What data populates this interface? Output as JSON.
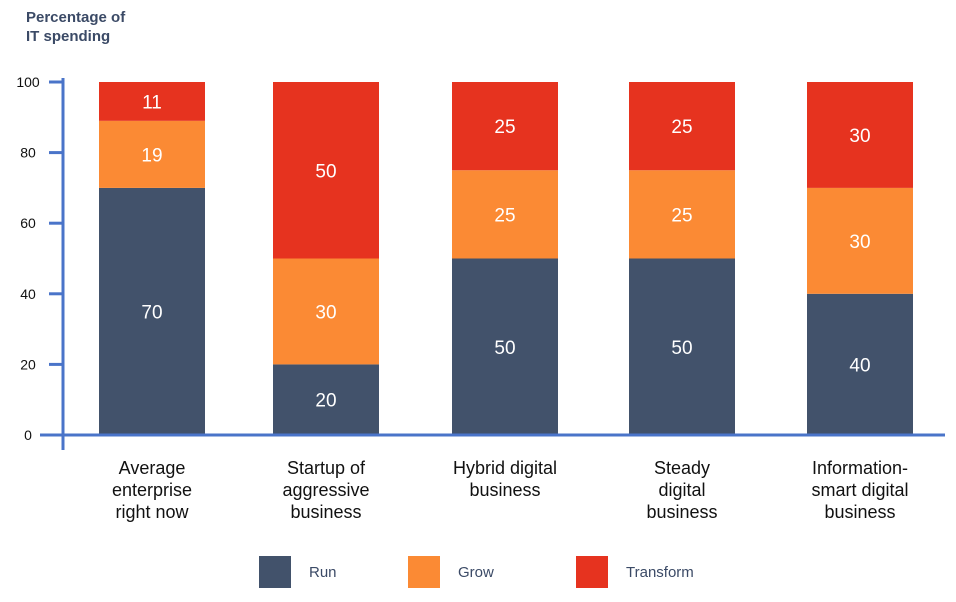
{
  "chart_data": {
    "type": "bar",
    "stacked": true,
    "title": "",
    "ylabel": "Percentage of IT spending",
    "xlabel": "",
    "ylim": [
      0,
      100
    ],
    "yticks": [
      0,
      20,
      40,
      60,
      80,
      100
    ],
    "grid": false,
    "legend_position": "bottom",
    "categories": [
      "Average enterprise right now",
      "Startup of aggressive business",
      "Hybrid digital business",
      "Steady digital business",
      "Information-smart digital business"
    ],
    "category_lines": [
      [
        "Average",
        "enterprise",
        "right now"
      ],
      [
        "Startup of",
        "aggressive",
        "business"
      ],
      [
        "Hybrid digital",
        "business"
      ],
      [
        "Steady",
        "digital",
        "business"
      ],
      [
        "Information-",
        "smart digital",
        "business"
      ]
    ],
    "series": [
      {
        "name": "Run",
        "values": [
          70,
          20,
          50,
          50,
          40
        ],
        "color": "#42526b"
      },
      {
        "name": "Grow",
        "values": [
          19,
          30,
          25,
          25,
          30
        ],
        "color": "#fb8a34"
      },
      {
        "name": "Transform",
        "values": [
          11,
          50,
          25,
          25,
          30
        ],
        "color": "#e6331f"
      }
    ],
    "axis_color": "#4a74c9"
  }
}
